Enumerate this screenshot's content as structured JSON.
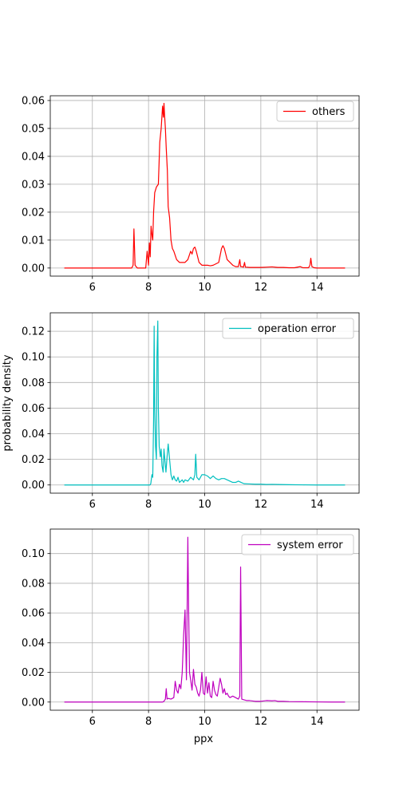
{
  "figure": {
    "background": "#ffffff",
    "ylabel": "probability density",
    "xlabel": "ppx"
  },
  "chart_data": [
    {
      "type": "line",
      "xlim": [
        4.5,
        15.5
      ],
      "ylim": [
        -0.0029,
        0.0617
      ],
      "xticks": [
        6,
        8,
        10,
        12,
        14
      ],
      "xtick_labels": [
        "6",
        "8",
        "10",
        "12",
        "14"
      ],
      "yticks": [
        0.0,
        0.01,
        0.02,
        0.03,
        0.04,
        0.05,
        0.06
      ],
      "ytick_labels": [
        "0.00",
        "0.01",
        "0.02",
        "0.03",
        "0.04",
        "0.05",
        "0.06"
      ],
      "grid": true,
      "legend": "top-right",
      "series": [
        {
          "name": "others",
          "color": "#ff0000",
          "x": [
            5.0,
            7.4,
            7.45,
            7.48,
            7.52,
            7.6,
            7.9,
            7.95,
            8.0,
            8.03,
            8.06,
            8.09,
            8.12,
            8.15,
            8.18,
            8.22,
            8.28,
            8.35,
            8.4,
            8.45,
            8.5,
            8.53,
            8.55,
            8.57,
            8.6,
            8.63,
            8.67,
            8.7,
            8.75,
            8.8,
            8.85,
            8.9,
            9.0,
            9.1,
            9.2,
            9.3,
            9.4,
            9.5,
            9.55,
            9.6,
            9.65,
            9.7,
            9.75,
            9.8,
            9.9,
            10.0,
            10.1,
            10.2,
            10.3,
            10.4,
            10.5,
            10.6,
            10.65,
            10.7,
            10.75,
            10.8,
            10.9,
            11.0,
            11.1,
            11.2,
            11.25,
            11.28,
            11.32,
            11.38,
            11.42,
            11.45,
            11.5,
            11.6,
            11.8,
            12.0,
            12.2,
            12.4,
            12.6,
            12.8,
            13.0,
            13.2,
            13.4,
            13.5,
            13.7,
            13.75,
            13.78,
            13.82,
            13.9,
            14.0,
            14.5,
            15.0
          ],
          "y": [
            0.0,
            0.0,
            0.001,
            0.014,
            0.001,
            0.0,
            0.0,
            0.006,
            0.001,
            0.009,
            0.004,
            0.015,
            0.012,
            0.01,
            0.02,
            0.027,
            0.029,
            0.03,
            0.045,
            0.05,
            0.058,
            0.054,
            0.059,
            0.055,
            0.05,
            0.043,
            0.035,
            0.022,
            0.018,
            0.01,
            0.007,
            0.006,
            0.003,
            0.002,
            0.002,
            0.002,
            0.003,
            0.006,
            0.005,
            0.007,
            0.0075,
            0.006,
            0.004,
            0.002,
            0.001,
            0.001,
            0.001,
            0.0008,
            0.001,
            0.0015,
            0.002,
            0.007,
            0.008,
            0.007,
            0.005,
            0.003,
            0.002,
            0.001,
            0.0005,
            0.0005,
            0.003,
            0.0005,
            0.0005,
            0.0003,
            0.002,
            0.0003,
            0.0003,
            0.0002,
            0.0002,
            0.0002,
            0.0003,
            0.0004,
            0.0002,
            0.0002,
            0.0001,
            0.0001,
            0.0005,
            0.0001,
            0.0001,
            0.001,
            0.0035,
            0.0005,
            0.0001,
            0.0,
            0.0,
            0.0
          ]
        }
      ]
    },
    {
      "type": "line",
      "xlim": [
        4.5,
        15.5
      ],
      "ylim": [
        -0.0064,
        0.1344
      ],
      "xticks": [
        6,
        8,
        10,
        12,
        14
      ],
      "xtick_labels": [
        "6",
        "8",
        "10",
        "12",
        "14"
      ],
      "yticks": [
        0.0,
        0.02,
        0.04,
        0.06,
        0.08,
        0.1,
        0.12
      ],
      "ytick_labels": [
        "0.00",
        "0.02",
        "0.04",
        "0.06",
        "0.08",
        "0.10",
        "0.12"
      ],
      "grid": true,
      "legend": "top-right",
      "series": [
        {
          "name": "operation error",
          "color": "#00bfbf",
          "x": [
            5.0,
            8.0,
            8.05,
            8.08,
            8.12,
            8.15,
            8.18,
            8.2,
            8.22,
            8.25,
            8.28,
            8.3,
            8.33,
            8.35,
            8.38,
            8.42,
            8.45,
            8.48,
            8.52,
            8.55,
            8.58,
            8.62,
            8.66,
            8.7,
            8.75,
            8.8,
            8.85,
            8.9,
            8.95,
            9.0,
            9.05,
            9.1,
            9.2,
            9.25,
            9.3,
            9.4,
            9.5,
            9.6,
            9.65,
            9.68,
            9.72,
            9.8,
            9.9,
            10.0,
            10.1,
            10.2,
            10.3,
            10.4,
            10.5,
            10.6,
            10.7,
            10.8,
            10.9,
            11.0,
            11.1,
            11.2,
            11.3,
            11.4,
            11.6,
            11.8,
            12.0,
            12.2,
            12.4,
            12.6,
            12.8,
            13.0,
            13.5,
            14.0,
            14.5,
            15.0
          ],
          "y": [
            0.0,
            0.0,
            0.0,
            0.001,
            0.008,
            0.006,
            0.05,
            0.124,
            0.06,
            0.03,
            0.02,
            0.1,
            0.128,
            0.06,
            0.03,
            0.022,
            0.028,
            0.015,
            0.01,
            0.028,
            0.02,
            0.01,
            0.022,
            0.032,
            0.02,
            0.008,
            0.004,
            0.007,
            0.004,
            0.003,
            0.006,
            0.002,
            0.004,
            0.002,
            0.004,
            0.003,
            0.006,
            0.004,
            0.008,
            0.024,
            0.006,
            0.004,
            0.008,
            0.008,
            0.007,
            0.005,
            0.007,
            0.005,
            0.004,
            0.005,
            0.005,
            0.004,
            0.003,
            0.002,
            0.002,
            0.003,
            0.002,
            0.001,
            0.0008,
            0.0006,
            0.0006,
            0.0004,
            0.0005,
            0.0004,
            0.0003,
            0.0002,
            0.0001,
            0.0,
            0.0,
            0.0
          ]
        }
      ]
    },
    {
      "type": "line",
      "xlim": [
        4.5,
        15.5
      ],
      "ylim": [
        -0.0055,
        0.1165
      ],
      "xticks": [
        6,
        8,
        10,
        12,
        14
      ],
      "xtick_labels": [
        "6",
        "8",
        "10",
        "12",
        "14"
      ],
      "yticks": [
        0.0,
        0.02,
        0.04,
        0.06,
        0.08,
        0.1
      ],
      "ytick_labels": [
        "0.00",
        "0.02",
        "0.04",
        "0.06",
        "0.08",
        "0.10"
      ],
      "grid": true,
      "legend": "top-right",
      "series": [
        {
          "name": "system error",
          "color": "#bf00bf",
          "x": [
            5.0,
            8.5,
            8.55,
            8.6,
            8.63,
            8.66,
            8.7,
            8.8,
            8.9,
            8.95,
            9.0,
            9.05,
            9.1,
            9.15,
            9.2,
            9.25,
            9.3,
            9.35,
            9.4,
            9.43,
            9.46,
            9.5,
            9.55,
            9.6,
            9.65,
            9.7,
            9.75,
            9.8,
            9.85,
            9.9,
            9.95,
            10.0,
            10.05,
            10.1,
            10.15,
            10.2,
            10.25,
            10.3,
            10.35,
            10.4,
            10.45,
            10.5,
            10.55,
            10.6,
            10.65,
            10.7,
            10.75,
            10.8,
            10.85,
            10.9,
            11.0,
            11.1,
            11.2,
            11.25,
            11.28,
            11.32,
            11.4,
            11.5,
            11.6,
            11.8,
            12.0,
            12.2,
            12.4,
            12.5,
            12.6,
            12.8,
            13.0,
            13.5,
            14.0,
            14.5,
            15.0
          ],
          "y": [
            0.0,
            0.0,
            0.0005,
            0.002,
            0.009,
            0.002,
            0.0025,
            0.002,
            0.003,
            0.014,
            0.008,
            0.006,
            0.012,
            0.009,
            0.02,
            0.045,
            0.062,
            0.015,
            0.111,
            0.06,
            0.02,
            0.015,
            0.008,
            0.022,
            0.012,
            0.01,
            0.006,
            0.004,
            0.008,
            0.02,
            0.006,
            0.005,
            0.017,
            0.006,
            0.013,
            0.004,
            0.003,
            0.014,
            0.008,
            0.005,
            0.004,
            0.01,
            0.016,
            0.012,
            0.006,
            0.009,
            0.005,
            0.006,
            0.004,
            0.003,
            0.004,
            0.003,
            0.002,
            0.004,
            0.091,
            0.002,
            0.0015,
            0.001,
            0.001,
            0.0005,
            0.0005,
            0.001,
            0.0008,
            0.001,
            0.0005,
            0.0005,
            0.0003,
            0.0002,
            0.0001,
            0.0,
            0.0
          ]
        }
      ]
    }
  ]
}
